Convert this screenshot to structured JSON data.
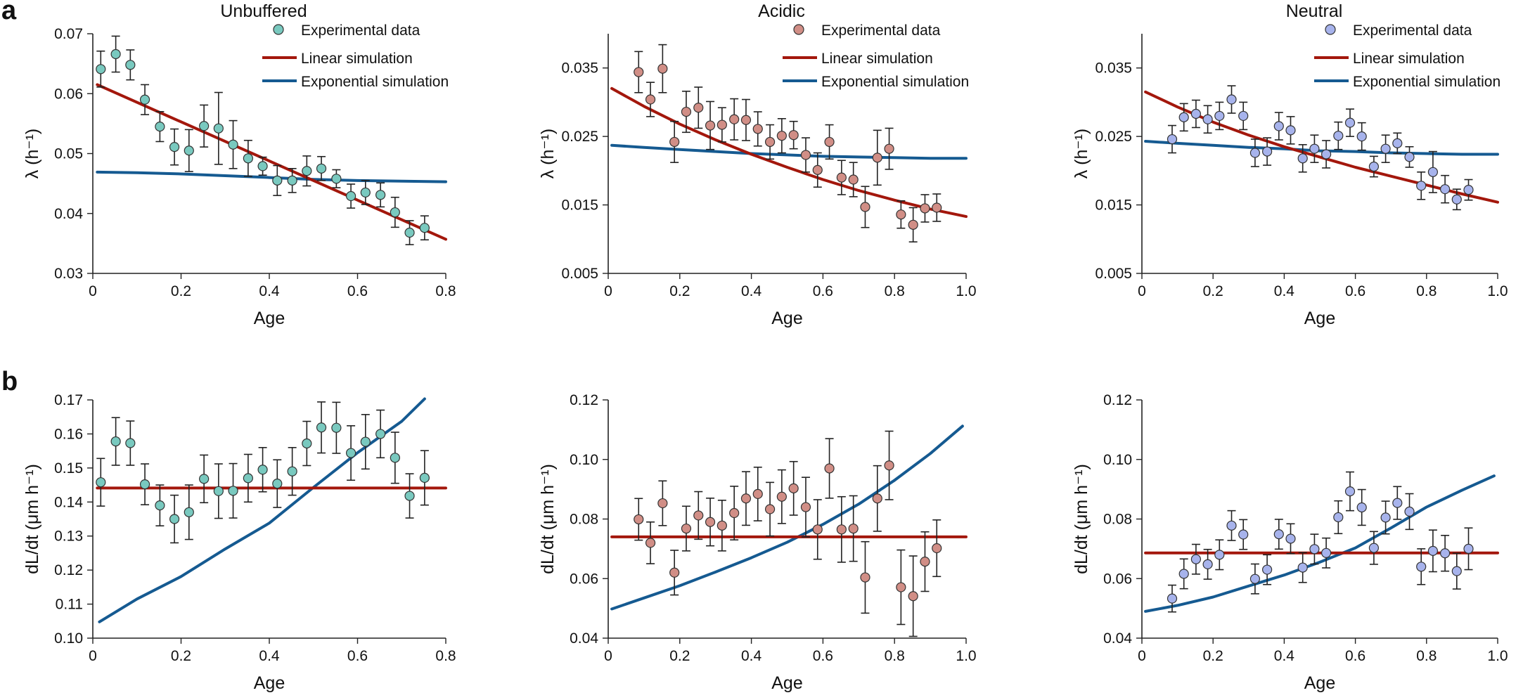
{
  "panel_labels": [
    "a",
    "b"
  ],
  "colors": {
    "linear": "#a3170c",
    "exponential": "#155a91",
    "axis": "#222222",
    "errorbar": "#222222"
  },
  "chart_data": [
    {
      "id": "a-unbuffered",
      "row": 0,
      "col": 0,
      "type": "scatter",
      "title": "Unbuffered",
      "xlabel": "Age",
      "ylabel": "λ (h⁻¹)",
      "xlim": [
        0,
        0.8
      ],
      "ylim": [
        0.03,
        0.07
      ],
      "xticks": [
        0,
        0.2,
        0.4,
        0.6,
        0.8
      ],
      "xtick_labels": [
        "0",
        "0.2",
        "0.4",
        "0.6",
        "0.8"
      ],
      "yticks": [
        0.03,
        0.04,
        0.05,
        0.06,
        0.07
      ],
      "ytick_labels": [
        "0.03",
        "0.04",
        "0.05",
        "0.06",
        "0.07"
      ],
      "marker_color": "#79c9bf",
      "legend_position": "top-right",
      "legend": [
        "Experimental data",
        "Linear simulation",
        "Exponential simulation"
      ],
      "experimental": {
        "x": [
          0.018,
          0.052,
          0.085,
          0.118,
          0.152,
          0.185,
          0.218,
          0.252,
          0.285,
          0.318,
          0.352,
          0.385,
          0.418,
          0.452,
          0.485,
          0.518,
          0.552,
          0.585,
          0.618,
          0.652,
          0.685,
          0.718,
          0.752
        ],
        "y": [
          0.0641,
          0.0666,
          0.0648,
          0.059,
          0.0545,
          0.0511,
          0.0505,
          0.0546,
          0.0542,
          0.0515,
          0.0492,
          0.0479,
          0.0455,
          0.0455,
          0.0471,
          0.0475,
          0.0458,
          0.0429,
          0.0435,
          0.0431,
          0.0402,
          0.0368,
          0.0376
        ],
        "err": [
          0.003,
          0.003,
          0.0025,
          0.0025,
          0.0025,
          0.003,
          0.0035,
          0.0035,
          0.006,
          0.004,
          0.003,
          0.0015,
          0.0025,
          0.002,
          0.0025,
          0.002,
          0.0015,
          0.002,
          0.002,
          0.002,
          0.0025,
          0.002,
          0.002
        ]
      },
      "linear": {
        "x": [
          0.01,
          0.8
        ],
        "y": [
          0.0615,
          0.0357
        ]
      },
      "exponential": {
        "x": [
          0.01,
          0.1,
          0.2,
          0.3,
          0.4,
          0.5,
          0.6,
          0.7,
          0.8
        ],
        "y": [
          0.0469,
          0.0468,
          0.0466,
          0.0463,
          0.046,
          0.0457,
          0.0455,
          0.0454,
          0.0453
        ]
      }
    },
    {
      "id": "a-acidic",
      "row": 0,
      "col": 1,
      "type": "scatter",
      "title": "Acidic",
      "xlabel": "Age",
      "ylabel": "λ (h⁻¹)",
      "xlim": [
        0,
        1.0
      ],
      "ylim": [
        0.005,
        0.04
      ],
      "xticks": [
        0,
        0.2,
        0.4,
        0.6,
        0.8,
        1.0
      ],
      "xtick_labels": [
        "0",
        "0.2",
        "0.4",
        "0.6",
        "0.8",
        "1.0"
      ],
      "yticks": [
        0.005,
        0.015,
        0.025,
        0.035
      ],
      "ytick_labels": [
        "0.005",
        "0.015",
        "0.025",
        "0.035"
      ],
      "marker_color": "#d18e86",
      "legend_position": "top-right",
      "legend": [
        "Experimental data",
        "Linear simulation",
        "Exponential simulation"
      ],
      "experimental": {
        "x": [
          0.085,
          0.118,
          0.152,
          0.185,
          0.218,
          0.252,
          0.285,
          0.318,
          0.352,
          0.385,
          0.418,
          0.452,
          0.485,
          0.518,
          0.552,
          0.585,
          0.618,
          0.652,
          0.685,
          0.718,
          0.752,
          0.785,
          0.818,
          0.852,
          0.885,
          0.918
        ],
        "y": [
          0.0344,
          0.0304,
          0.0349,
          0.0242,
          0.0286,
          0.0292,
          0.0266,
          0.0267,
          0.0275,
          0.0274,
          0.0261,
          0.0242,
          0.0251,
          0.0252,
          0.0223,
          0.0201,
          0.0242,
          0.019,
          0.0187,
          0.0147,
          0.0219,
          0.0232,
          0.0136,
          0.0121,
          0.0145,
          0.0146
        ],
        "err": [
          0.003,
          0.0025,
          0.0035,
          0.003,
          0.003,
          0.003,
          0.0035,
          0.0025,
          0.003,
          0.003,
          0.0025,
          0.0025,
          0.0025,
          0.002,
          0.0025,
          0.0025,
          0.0025,
          0.0025,
          0.0025,
          0.003,
          0.004,
          0.003,
          0.002,
          0.0025,
          0.002,
          0.002
        ]
      },
      "linear": {
        "x": [
          0.01,
          0.1,
          0.2,
          0.3,
          0.4,
          0.5,
          0.6,
          0.7,
          0.8,
          0.9,
          1.0
        ],
        "y": [
          0.032,
          0.0294,
          0.0268,
          0.0245,
          0.0224,
          0.0205,
          0.0187,
          0.0171,
          0.0157,
          0.0144,
          0.0133
        ]
      },
      "exponential": {
        "x": [
          0.01,
          0.1,
          0.2,
          0.3,
          0.4,
          0.5,
          0.6,
          0.7,
          0.8,
          0.9,
          1.0
        ],
        "y": [
          0.0237,
          0.0234,
          0.0231,
          0.0228,
          0.0225,
          0.0223,
          0.0221,
          0.022,
          0.0219,
          0.0218,
          0.0218
        ]
      }
    },
    {
      "id": "a-neutral",
      "row": 0,
      "col": 2,
      "type": "scatter",
      "title": "Neutral",
      "xlabel": "Age",
      "ylabel": "λ (h⁻¹)",
      "xlim": [
        0,
        1.0
      ],
      "ylim": [
        0.005,
        0.04
      ],
      "xticks": [
        0,
        0.2,
        0.4,
        0.6,
        0.8,
        1.0
      ],
      "xtick_labels": [
        "0",
        "0.2",
        "0.4",
        "0.6",
        "0.8",
        "1.0"
      ],
      "yticks": [
        0.005,
        0.015,
        0.025,
        0.035
      ],
      "ytick_labels": [
        "0.005",
        "0.015",
        "0.025",
        "0.035"
      ],
      "marker_color": "#a7b3ec",
      "legend_position": "top-right",
      "legend": [
        "Experimental data",
        "Linear simulation",
        "Exponential simulation"
      ],
      "experimental": {
        "x": [
          0.085,
          0.118,
          0.152,
          0.185,
          0.218,
          0.252,
          0.285,
          0.318,
          0.352,
          0.385,
          0.418,
          0.452,
          0.485,
          0.518,
          0.552,
          0.585,
          0.618,
          0.652,
          0.685,
          0.718,
          0.752,
          0.785,
          0.818,
          0.852,
          0.885,
          0.918
        ],
        "y": [
          0.0246,
          0.0278,
          0.0283,
          0.0275,
          0.028,
          0.0304,
          0.028,
          0.0226,
          0.0228,
          0.0265,
          0.0259,
          0.0218,
          0.0232,
          0.0224,
          0.0251,
          0.027,
          0.025,
          0.0206,
          0.0232,
          0.024,
          0.022,
          0.0178,
          0.0198,
          0.0173,
          0.0158,
          0.0172
        ],
        "err": [
          0.002,
          0.002,
          0.002,
          0.002,
          0.002,
          0.002,
          0.002,
          0.002,
          0.002,
          0.002,
          0.002,
          0.002,
          0.002,
          0.002,
          0.002,
          0.002,
          0.002,
          0.0015,
          0.002,
          0.0015,
          0.0015,
          0.002,
          0.003,
          0.002,
          0.0015,
          0.0015
        ]
      },
      "linear": {
        "x": [
          0.01,
          0.1,
          0.2,
          0.3,
          0.4,
          0.5,
          0.6,
          0.7,
          0.8,
          0.9,
          1.0
        ],
        "y": [
          0.0315,
          0.0293,
          0.0271,
          0.0252,
          0.0235,
          0.022,
          0.0205,
          0.0192,
          0.0179,
          0.0166,
          0.0154
        ]
      },
      "exponential": {
        "x": [
          0.01,
          0.1,
          0.2,
          0.3,
          0.4,
          0.5,
          0.6,
          0.7,
          0.8,
          0.9,
          1.0
        ],
        "y": [
          0.0243,
          0.024,
          0.0237,
          0.0234,
          0.0232,
          0.0229,
          0.0228,
          0.0226,
          0.0225,
          0.0224,
          0.0224
        ]
      }
    },
    {
      "id": "b-unbuffered",
      "row": 1,
      "col": 0,
      "type": "scatter",
      "title": "",
      "xlabel": "Age",
      "ylabel": "dL/dt (μm h⁻¹)",
      "xlim": [
        0,
        0.8
      ],
      "ylim": [
        0.1,
        0.17
      ],
      "xticks": [
        0,
        0.2,
        0.4,
        0.6,
        0.8
      ],
      "xtick_labels": [
        "0",
        "0.2",
        "0.4",
        "0.6",
        "0.8"
      ],
      "yticks": [
        0.1,
        0.11,
        0.12,
        0.13,
        0.14,
        0.15,
        0.16,
        0.17
      ],
      "ytick_labels": [
        "0.10",
        "0.11",
        "0.12",
        "0.13",
        "0.14",
        "0.15",
        "0.16",
        "0.17"
      ],
      "marker_color": "#79c9bf",
      "legend": [],
      "experimental": {
        "x": [
          0.018,
          0.052,
          0.085,
          0.118,
          0.152,
          0.185,
          0.218,
          0.252,
          0.285,
          0.318,
          0.352,
          0.385,
          0.418,
          0.452,
          0.485,
          0.518,
          0.552,
          0.585,
          0.618,
          0.652,
          0.685,
          0.718,
          0.752
        ],
        "y": [
          0.1458,
          0.1578,
          0.1573,
          0.1452,
          0.139,
          0.135,
          0.137,
          0.1468,
          0.1432,
          0.1433,
          0.147,
          0.1495,
          0.1454,
          0.149,
          0.1572,
          0.1619,
          0.1618,
          0.1544,
          0.1577,
          0.16,
          0.153,
          0.1418,
          0.1471
        ],
        "err": [
          0.007,
          0.007,
          0.0065,
          0.006,
          0.006,
          0.007,
          0.008,
          0.007,
          0.008,
          0.008,
          0.007,
          0.0065,
          0.007,
          0.007,
          0.0065,
          0.0075,
          0.0075,
          0.008,
          0.008,
          0.007,
          0.0075,
          0.0065,
          0.008
        ]
      },
      "linear": {
        "x": [
          0.01,
          0.8
        ],
        "y": [
          0.1441,
          0.1441
        ]
      },
      "exponential": {
        "x": [
          0.015,
          0.1,
          0.2,
          0.3,
          0.4,
          0.5,
          0.6,
          0.7,
          0.752
        ],
        "y": [
          0.1048,
          0.1115,
          0.1181,
          0.1262,
          0.1338,
          0.1443,
          0.1545,
          0.1637,
          0.1703
        ]
      }
    },
    {
      "id": "b-acidic",
      "row": 1,
      "col": 1,
      "type": "scatter",
      "title": "",
      "xlabel": "Age",
      "ylabel": "dL/dt (μm h⁻¹)",
      "xlim": [
        0,
        1.0
      ],
      "ylim": [
        0.04,
        0.12
      ],
      "xticks": [
        0,
        0.2,
        0.4,
        0.6,
        0.8,
        1.0
      ],
      "xtick_labels": [
        "0",
        "0.2",
        "0.4",
        "0.6",
        "0.8",
        "1.0"
      ],
      "yticks": [
        0.04,
        0.06,
        0.08,
        0.1,
        0.12
      ],
      "ytick_labels": [
        "0.04",
        "0.06",
        "0.08",
        "0.10",
        "0.12"
      ],
      "marker_color": "#d18e86",
      "legend": [],
      "experimental": {
        "x": [
          0.085,
          0.118,
          0.152,
          0.185,
          0.218,
          0.252,
          0.285,
          0.318,
          0.352,
          0.385,
          0.418,
          0.452,
          0.485,
          0.518,
          0.552,
          0.585,
          0.618,
          0.652,
          0.685,
          0.718,
          0.752,
          0.785,
          0.818,
          0.852,
          0.885,
          0.918
        ],
        "y": [
          0.0799,
          0.072,
          0.0853,
          0.062,
          0.0768,
          0.0812,
          0.079,
          0.0778,
          0.082,
          0.0869,
          0.0884,
          0.0833,
          0.0875,
          0.0903,
          0.084,
          0.0765,
          0.097,
          0.0765,
          0.0768,
          0.0604,
          0.0869,
          0.098,
          0.0571,
          0.0541,
          0.0657,
          0.0702
        ],
        "err": [
          0.007,
          0.007,
          0.0075,
          0.0075,
          0.0075,
          0.008,
          0.008,
          0.0085,
          0.009,
          0.009,
          0.009,
          0.009,
          0.009,
          0.009,
          0.01,
          0.01,
          0.01,
          0.011,
          0.011,
          0.012,
          0.011,
          0.0115,
          0.0125,
          0.0135,
          0.01,
          0.0095
        ]
      },
      "linear": {
        "x": [
          0.01,
          1.0
        ],
        "y": [
          0.074,
          0.074
        ]
      },
      "exponential": {
        "x": [
          0.01,
          0.1,
          0.2,
          0.3,
          0.4,
          0.5,
          0.6,
          0.7,
          0.8,
          0.9,
          0.99
        ],
        "y": [
          0.0498,
          0.0535,
          0.0576,
          0.0622,
          0.067,
          0.0722,
          0.0782,
          0.085,
          0.093,
          0.102,
          0.1112
        ]
      }
    },
    {
      "id": "b-neutral",
      "row": 1,
      "col": 2,
      "type": "scatter",
      "title": "",
      "xlabel": "Age",
      "ylabel": "dL/dt (μm h⁻¹)",
      "xlim": [
        0,
        1.0
      ],
      "ylim": [
        0.04,
        0.12
      ],
      "xticks": [
        0,
        0.2,
        0.4,
        0.6,
        0.8,
        1.0
      ],
      "xtick_labels": [
        "0",
        "0.2",
        "0.4",
        "0.6",
        "0.8",
        "1.0"
      ],
      "yticks": [
        0.04,
        0.06,
        0.08,
        0.1,
        0.12
      ],
      "ytick_labels": [
        "0.04",
        "0.06",
        "0.08",
        "0.10",
        "0.12"
      ],
      "marker_color": "#a7b3ec",
      "legend": [],
      "experimental": {
        "x": [
          0.085,
          0.118,
          0.152,
          0.185,
          0.218,
          0.252,
          0.285,
          0.318,
          0.352,
          0.385,
          0.418,
          0.452,
          0.485,
          0.518,
          0.552,
          0.585,
          0.618,
          0.652,
          0.685,
          0.718,
          0.752,
          0.785,
          0.818,
          0.852,
          0.885,
          0.918
        ],
        "y": [
          0.0533,
          0.0616,
          0.0665,
          0.0648,
          0.068,
          0.0778,
          0.0748,
          0.0599,
          0.063,
          0.0749,
          0.0734,
          0.0637,
          0.0699,
          0.0686,
          0.0806,
          0.0893,
          0.0839,
          0.0703,
          0.0805,
          0.0854,
          0.0825,
          0.064,
          0.0693,
          0.0685,
          0.0625,
          0.07
        ],
        "err": [
          0.0045,
          0.005,
          0.005,
          0.005,
          0.005,
          0.005,
          0.005,
          0.005,
          0.005,
          0.005,
          0.005,
          0.005,
          0.005,
          0.005,
          0.0055,
          0.0065,
          0.006,
          0.0055,
          0.0055,
          0.0055,
          0.006,
          0.006,
          0.007,
          0.006,
          0.006,
          0.007
        ]
      },
      "linear": {
        "x": [
          0.01,
          1.0
        ],
        "y": [
          0.0686,
          0.0686
        ]
      },
      "exponential": {
        "x": [
          0.01,
          0.1,
          0.2,
          0.3,
          0.4,
          0.5,
          0.6,
          0.7,
          0.8,
          0.9,
          0.99
        ],
        "y": [
          0.049,
          0.051,
          0.0538,
          0.0575,
          0.0612,
          0.0655,
          0.0703,
          0.077,
          0.084,
          0.0897,
          0.0945
        ]
      }
    }
  ]
}
